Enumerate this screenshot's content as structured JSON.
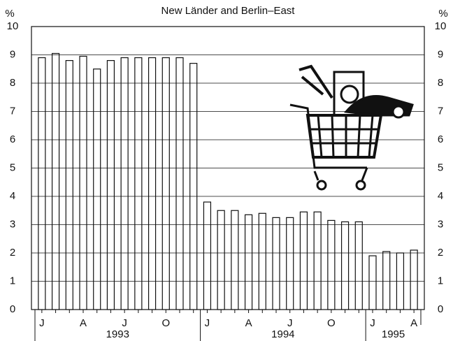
{
  "chart_data": {
    "type": "bar",
    "title": "New Länder and Berlin–East",
    "ylabel": "%",
    "y2label": "%",
    "categories": [
      "J",
      null,
      null,
      "A",
      null,
      null,
      "J",
      null,
      null,
      "O",
      null,
      null,
      "J",
      null,
      null,
      "A",
      null,
      null,
      "J",
      null,
      null,
      "O",
      null,
      null,
      "J",
      null,
      null,
      "A"
    ],
    "values": [
      8.9,
      9.05,
      8.8,
      8.95,
      8.5,
      8.8,
      8.9,
      8.9,
      8.9,
      8.9,
      8.9,
      8.7,
      3.8,
      3.5,
      3.5,
      3.35,
      3.4,
      3.25,
      3.25,
      3.45,
      3.45,
      3.15,
      3.1,
      3.1,
      1.9,
      2.05,
      2.0,
      2.1
    ],
    "x_groups": [
      {
        "label": "1993",
        "count": 12
      },
      {
        "label": "1994",
        "count": 12
      },
      {
        "label": "1995",
        "count": 4
      }
    ],
    "color": "#ffffff",
    "ylim": [
      0,
      10
    ],
    "yticks": [
      0,
      1,
      2,
      3,
      4,
      5,
      6,
      7,
      8,
      9,
      10
    ],
    "y2lim": [
      0,
      10
    ],
    "y2ticks": [
      0,
      1,
      2,
      3,
      4,
      5,
      6,
      7,
      8,
      9,
      10
    ],
    "grid": true
  }
}
